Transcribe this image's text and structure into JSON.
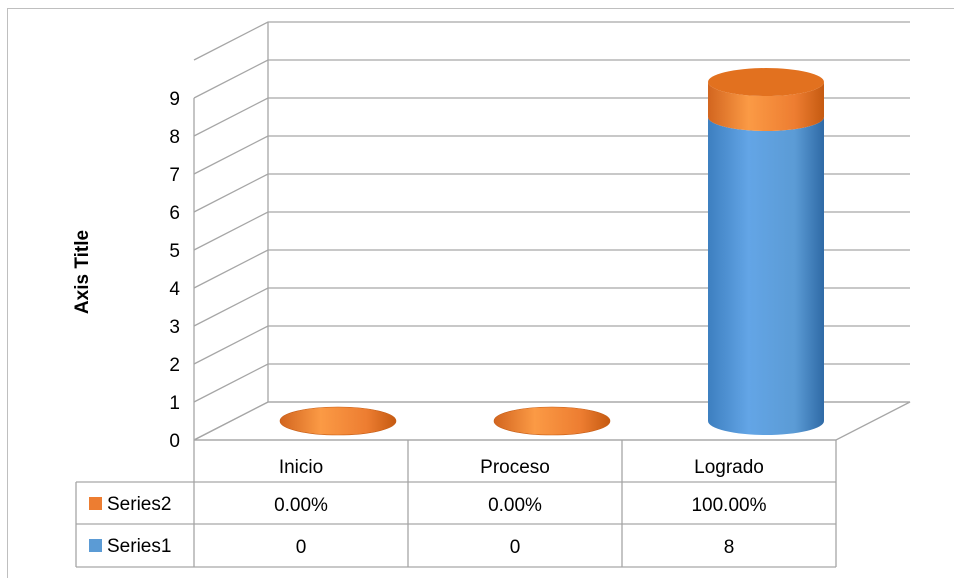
{
  "chart_data": {
    "type": "bar",
    "style": "3d-cylinder-stacked",
    "categories": [
      "Inicio",
      "Proceso",
      "Logrado"
    ],
    "series": [
      {
        "name": "Series1",
        "values": [
          0,
          0,
          8
        ],
        "display": [
          "0",
          "0",
          "8"
        ],
        "color": "#5B9BD5"
      },
      {
        "name": "Series2",
        "values": [
          0.0,
          0.0,
          1.0
        ],
        "display": [
          "0.00%",
          "0.00%",
          "100.00%"
        ],
        "color": "#ED7D31"
      }
    ],
    "ylabel": "Axis Title",
    "ylim": [
      0,
      9
    ],
    "yticks": [
      "0",
      "1",
      "2",
      "3",
      "4",
      "5",
      "6",
      "7",
      "8",
      "9"
    ],
    "grid": true,
    "legend": "data-table"
  }
}
